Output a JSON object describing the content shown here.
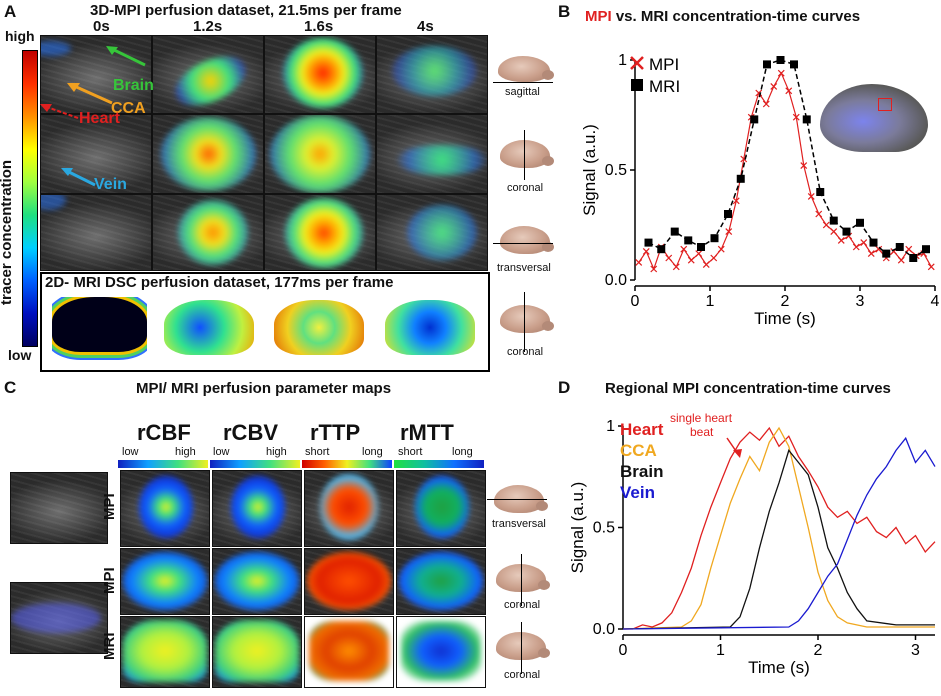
{
  "panelA": {
    "letter": "A",
    "title": "3D-MPI perfusion dataset, 21.5ms per frame",
    "times": [
      "0s",
      "1.2s",
      "1.6s",
      "4s"
    ],
    "colorbar_label": "tracer concentration",
    "colorbar_high": "high",
    "colorbar_low": "low",
    "annotations": {
      "brain": "Brain",
      "cca": "CCA",
      "heart": "Heart",
      "vein": "Vein"
    },
    "annotation_colors": {
      "brain": "#36c53a",
      "cca": "#f0a020",
      "heart": "#e02020",
      "vein": "#2aa8e0"
    },
    "planes": [
      "sagittal",
      "coronal",
      "transversal"
    ],
    "dsc_title": "2D- MRI DSC perfusion dataset, 177ms per frame",
    "dsc_plane": "coronal"
  },
  "panelB": {
    "letter": "B",
    "title_mpi": "MPI",
    "title_rest": " vs. MRI concentration-time curves",
    "legend": [
      "MPI",
      "MRI"
    ]
  },
  "panelC": {
    "letter": "C",
    "title": "MPI/ MRI perfusion parameter maps",
    "maps": [
      "rCBF",
      "rCBV",
      "rTTP",
      "rMTT"
    ],
    "scales": [
      [
        "low",
        "high"
      ],
      [
        "low",
        "high"
      ],
      [
        "short",
        "long"
      ],
      [
        "short",
        "long"
      ]
    ],
    "rows": [
      "MPI",
      "MPI",
      "MRI"
    ],
    "planes": [
      "transversal",
      "coronal",
      "coronal"
    ]
  },
  "panelD": {
    "letter": "D",
    "title": "Regional MPI concentration-time curves",
    "legend": [
      "Heart",
      "CCA",
      "Brain",
      "Vein"
    ],
    "annotation": "single heart beat"
  },
  "chart_data": [
    {
      "type": "scatter",
      "title": "MPI vs. MRI concentration-time curves",
      "xlabel": "Time (s)",
      "ylabel": "Signal (a.u.)",
      "xlim": [
        0,
        4
      ],
      "ylim": [
        0,
        1
      ],
      "xticks": [
        "0",
        "1",
        "2",
        "3",
        "4"
      ],
      "yticks": [
        "0.0",
        "0.5",
        "1"
      ],
      "series": [
        {
          "name": "MPI",
          "color": "#e02020",
          "marker": "x",
          "x": [
            0.05,
            0.15,
            0.25,
            0.35,
            0.45,
            0.55,
            0.65,
            0.75,
            0.85,
            0.95,
            1.05,
            1.15,
            1.25,
            1.35,
            1.45,
            1.55,
            1.65,
            1.75,
            1.85,
            1.95,
            2.05,
            2.15,
            2.25,
            2.35,
            2.45,
            2.55,
            2.65,
            2.75,
            2.85,
            2.95,
            3.05,
            3.15,
            3.25,
            3.35,
            3.45,
            3.55,
            3.65,
            3.75,
            3.85,
            3.95
          ],
          "y": [
            0.08,
            0.13,
            0.05,
            0.15,
            0.1,
            0.06,
            0.14,
            0.09,
            0.12,
            0.07,
            0.1,
            0.14,
            0.22,
            0.36,
            0.55,
            0.74,
            0.85,
            0.8,
            0.88,
            0.94,
            0.86,
            0.74,
            0.52,
            0.38,
            0.3,
            0.25,
            0.22,
            0.18,
            0.2,
            0.15,
            0.17,
            0.12,
            0.14,
            0.1,
            0.13,
            0.09,
            0.14,
            0.11,
            0.12,
            0.06
          ]
        },
        {
          "name": "MRI",
          "color": "#000000",
          "marker": "s",
          "x": [
            0.18,
            0.35,
            0.53,
            0.71,
            0.88,
            1.06,
            1.24,
            1.41,
            1.59,
            1.76,
            1.94,
            2.12,
            2.29,
            2.47,
            2.65,
            2.82,
            3.0,
            3.18,
            3.35,
            3.53,
            3.71,
            3.88
          ],
          "y": [
            0.17,
            0.14,
            0.22,
            0.18,
            0.15,
            0.19,
            0.3,
            0.46,
            0.73,
            0.98,
            1.0,
            0.98,
            0.73,
            0.4,
            0.27,
            0.22,
            0.26,
            0.17,
            0.12,
            0.15,
            0.1,
            0.14
          ]
        }
      ]
    },
    {
      "type": "line",
      "title": "Regional MPI concentration-time curves",
      "xlabel": "Time (s)",
      "ylabel": "Signal (a.u.)",
      "xlim": [
        0,
        3.2
      ],
      "ylim": [
        0,
        1
      ],
      "xticks": [
        "0",
        "1",
        "2",
        "3"
      ],
      "yticks": [
        "0.0",
        "0.5",
        "1"
      ],
      "series": [
        {
          "name": "Heart",
          "color": "#e02020",
          "x": [
            0,
            0.1,
            0.2,
            0.3,
            0.4,
            0.5,
            0.6,
            0.7,
            0.8,
            0.9,
            1.0,
            1.1,
            1.2,
            1.3,
            1.4,
            1.5,
            1.6,
            1.7,
            1.8,
            1.9,
            2.0,
            2.1,
            2.2,
            2.3,
            2.4,
            2.5,
            2.6,
            2.7,
            2.8,
            2.9,
            3.0,
            3.1,
            3.2
          ],
          "y": [
            0,
            0,
            0.02,
            0.01,
            0.03,
            0.08,
            0.18,
            0.3,
            0.46,
            0.6,
            0.72,
            0.84,
            0.92,
            0.97,
            0.93,
            0.99,
            0.9,
            0.95,
            0.85,
            0.78,
            0.7,
            0.6,
            0.55,
            0.58,
            0.52,
            0.55,
            0.48,
            0.45,
            0.5,
            0.42,
            0.46,
            0.38,
            0.43
          ]
        },
        {
          "name": "CCA",
          "color": "#f0a820",
          "x": [
            0,
            0.6,
            0.7,
            0.8,
            0.9,
            1.0,
            1.1,
            1.2,
            1.3,
            1.4,
            1.5,
            1.6,
            1.7,
            1.8,
            1.9,
            2.0,
            2.1,
            2.2,
            2.3,
            2.5,
            2.8,
            3.2
          ],
          "y": [
            0,
            0.01,
            0.04,
            0.12,
            0.3,
            0.46,
            0.62,
            0.74,
            0.85,
            0.78,
            0.92,
            0.99,
            0.9,
            0.7,
            0.5,
            0.28,
            0.14,
            0.06,
            0.03,
            0.01,
            0.01,
            0.01
          ]
        },
        {
          "name": "Brain",
          "color": "#111111",
          "x": [
            0,
            1.1,
            1.2,
            1.3,
            1.4,
            1.5,
            1.6,
            1.7,
            1.8,
            1.9,
            2.0,
            2.1,
            2.2,
            2.3,
            2.4,
            2.5,
            2.8,
            3.2
          ],
          "y": [
            0,
            0.01,
            0.06,
            0.2,
            0.4,
            0.58,
            0.72,
            0.88,
            0.82,
            0.76,
            0.6,
            0.4,
            0.3,
            0.18,
            0.1,
            0.04,
            0.02,
            0.02
          ]
        },
        {
          "name": "Vein",
          "color": "#1a1ad0",
          "x": [
            0,
            1.7,
            1.8,
            1.9,
            2.0,
            2.1,
            2.2,
            2.3,
            2.4,
            2.5,
            2.6,
            2.7,
            2.8,
            2.9,
            3.0,
            3.1,
            3.2
          ],
          "y": [
            0,
            0.01,
            0.04,
            0.1,
            0.18,
            0.26,
            0.32,
            0.44,
            0.56,
            0.66,
            0.74,
            0.8,
            0.88,
            0.94,
            0.82,
            0.88,
            0.8
          ]
        }
      ]
    }
  ]
}
